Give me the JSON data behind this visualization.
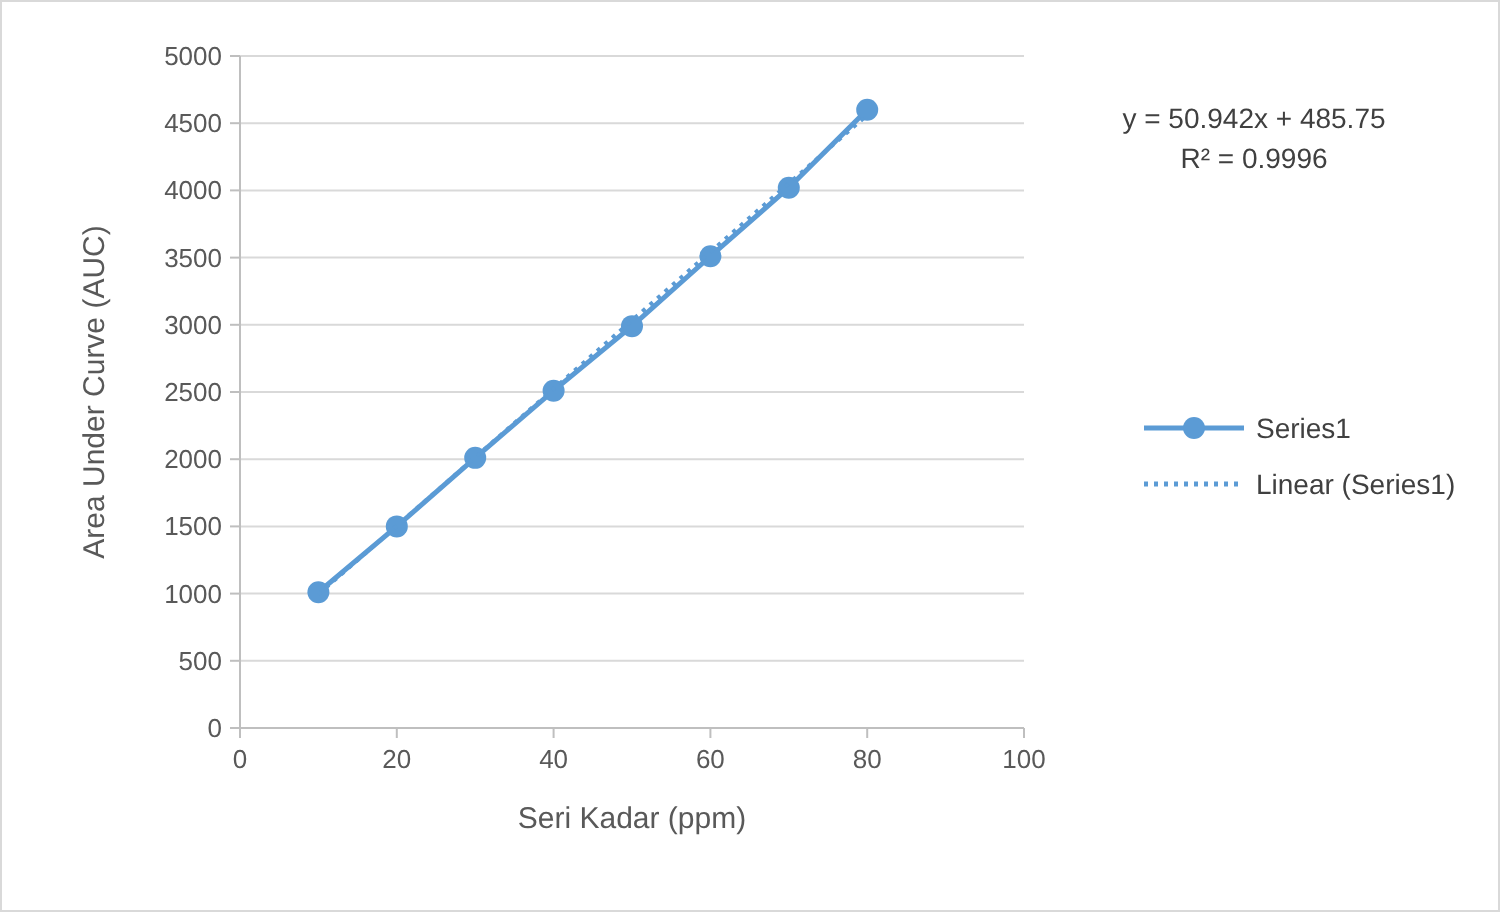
{
  "chart_data": {
    "type": "line",
    "xlabel": "Seri Kadar (ppm)",
    "ylabel": "Area Under Curve (AUC)",
    "x": [
      10,
      20,
      30,
      40,
      50,
      60,
      70,
      80
    ],
    "series": [
      {
        "name": "Series1",
        "color": "#5b9bd5",
        "values": [
          1010,
          1500,
          2010,
          2510,
          2990,
          3510,
          4020,
          4600
        ],
        "marker": "circle",
        "line_style": "solid"
      },
      {
        "name": "Linear (Series1)",
        "type": "line",
        "color": "#5b9bd5",
        "x": [
          10,
          80
        ],
        "values": [
          995,
          4561
        ],
        "marker": "none",
        "line_style": "dotted"
      }
    ],
    "xlim": [
      0,
      100
    ],
    "xticks": [
      0,
      20,
      40,
      60,
      80,
      100
    ],
    "ylim": [
      0,
      5000
    ],
    "yticks": [
      0,
      500,
      1000,
      1500,
      2000,
      2500,
      3000,
      3500,
      4000,
      4500,
      5000
    ],
    "grid": "y",
    "legend": "right",
    "annotations": [
      "y = 50.942x + 485.75",
      "R² = 0.9996"
    ]
  }
}
